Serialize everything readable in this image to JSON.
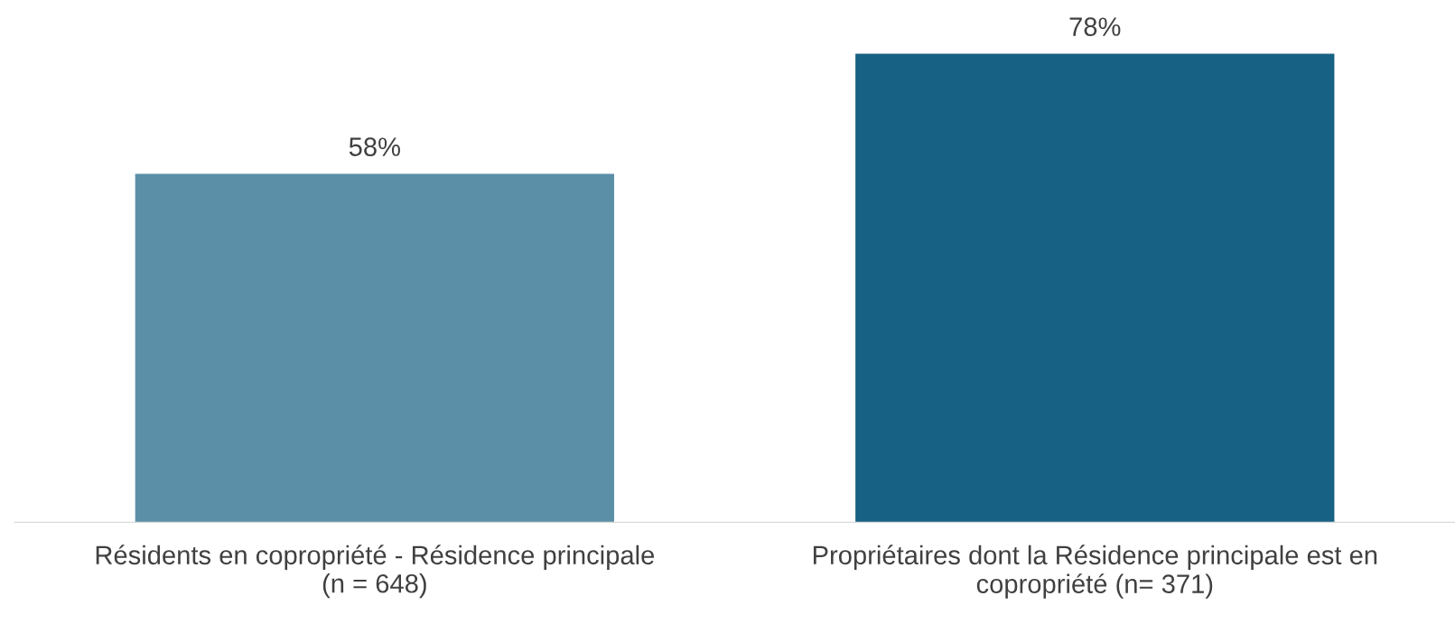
{
  "chart_data": {
    "type": "bar",
    "categories": [
      "Résidents en copropriété - Résidence principale\n(n = 648)",
      "Propriétaires dont la Résidence principale est en\ncopropriété (n= 371)"
    ],
    "values": [
      58,
      78
    ],
    "colors": [
      "#5b8fa8",
      "#176184"
    ],
    "value_labels": [
      "58%",
      "78%"
    ],
    "tick_labels": "x",
    "grid": false,
    "legend": false
  }
}
